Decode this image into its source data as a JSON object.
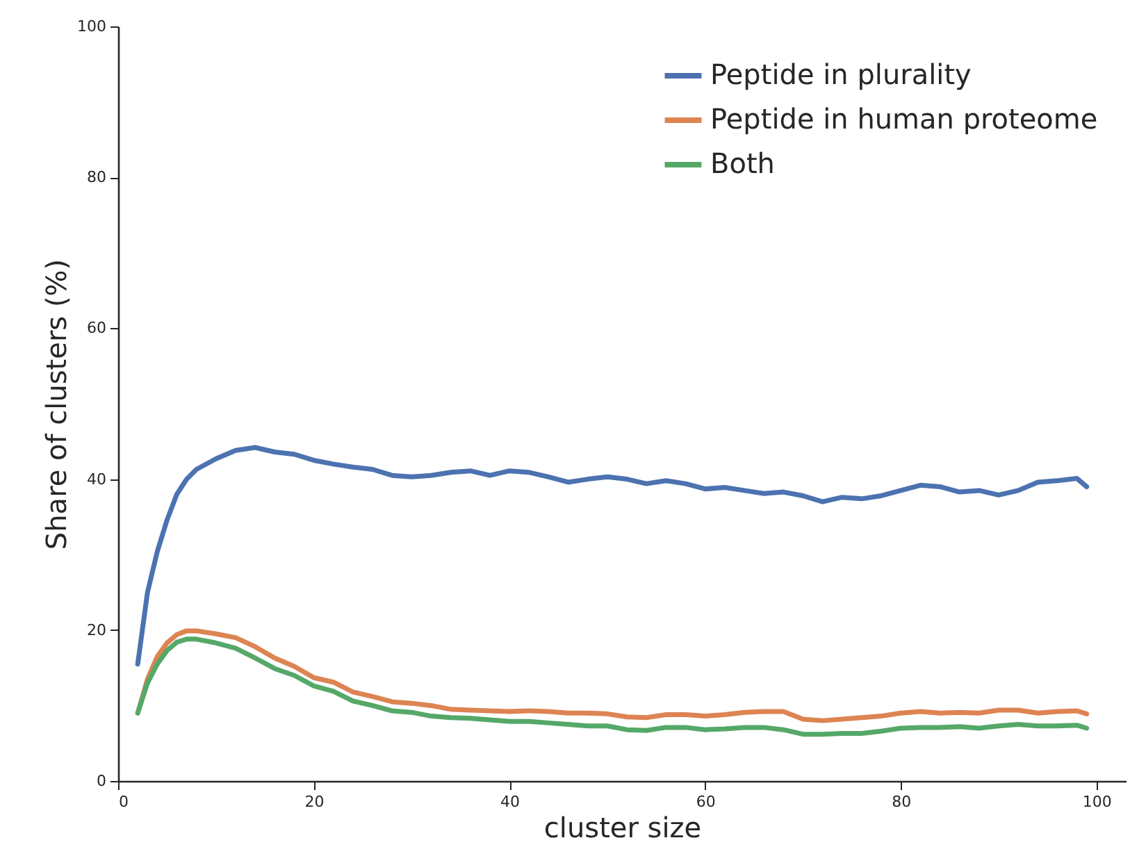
{
  "chart_data": {
    "type": "line",
    "xlabel": "cluster size",
    "ylabel": "Share of clusters (%)",
    "x": [
      2,
      3,
      4,
      5,
      6,
      7,
      8,
      10,
      12,
      14,
      16,
      18,
      20,
      22,
      24,
      26,
      28,
      30,
      32,
      34,
      36,
      38,
      40,
      42,
      44,
      46,
      48,
      50,
      52,
      54,
      56,
      58,
      60,
      62,
      64,
      66,
      68,
      70,
      72,
      74,
      76,
      78,
      80,
      82,
      84,
      86,
      88,
      90,
      92,
      94,
      96,
      98,
      99
    ],
    "series": [
      {
        "name": "Peptide in plurality",
        "color": "#4c72b0",
        "values": [
          15.5,
          25,
          30.4,
          34.6,
          38,
          40,
          41.3,
          42.7,
          43.8,
          44.2,
          43.6,
          43.3,
          42.5,
          42,
          41.6,
          41.3,
          40.5,
          40.3,
          40.5,
          40.9,
          41.1,
          40.5,
          41.1,
          40.9,
          40.3,
          39.6,
          40,
          40.3,
          40,
          39.4,
          39.8,
          39.4,
          38.7,
          38.9,
          38.5,
          38.1,
          38.3,
          37.8,
          37,
          37.6,
          37.4,
          37.8,
          38.5,
          39.2,
          39,
          38.3,
          38.5,
          37.9,
          38.5,
          39.6,
          39.8,
          40.1,
          39
        ]
      },
      {
        "name": "Peptide in human proteome",
        "color": "#dd8452",
        "values": [
          9,
          13.5,
          16.5,
          18.3,
          19.4,
          19.9,
          19.9,
          19.5,
          19,
          17.8,
          16.3,
          15.2,
          13.7,
          13.1,
          11.8,
          11.2,
          10.5,
          10.3,
          10,
          9.5,
          9.4,
          9.3,
          9.2,
          9.3,
          9.2,
          9,
          9,
          8.9,
          8.5,
          8.4,
          8.8,
          8.8,
          8.6,
          8.8,
          9.1,
          9.2,
          9.2,
          8.2,
          8,
          8.2,
          8.4,
          8.6,
          9,
          9.2,
          9,
          9.1,
          9,
          9.4,
          9.4,
          9,
          9.2,
          9.3,
          8.9
        ]
      },
      {
        "name": "Both",
        "color": "#55a868",
        "values": [
          9,
          13,
          15.5,
          17.3,
          18.4,
          18.8,
          18.8,
          18.3,
          17.6,
          16.3,
          14.9,
          14,
          12.6,
          11.9,
          10.6,
          10,
          9.3,
          9.1,
          8.6,
          8.4,
          8.3,
          8.1,
          7.9,
          7.9,
          7.7,
          7.5,
          7.3,
          7.3,
          6.8,
          6.7,
          7.1,
          7.1,
          6.8,
          6.9,
          7.1,
          7.1,
          6.8,
          6.2,
          6.2,
          6.3,
          6.3,
          6.6,
          7,
          7.1,
          7.1,
          7.2,
          7,
          7.3,
          7.5,
          7.3,
          7.3,
          7.4,
          7
        ]
      }
    ],
    "xlim": [
      0,
      103
    ],
    "xticks": [
      0,
      20,
      40,
      60,
      80,
      100
    ],
    "ylim": [
      0,
      100
    ],
    "yticks": [
      0,
      20,
      40,
      60,
      80,
      100
    ],
    "grid": false,
    "legend": "top right",
    "marker": "none",
    "line_style": "solid"
  }
}
